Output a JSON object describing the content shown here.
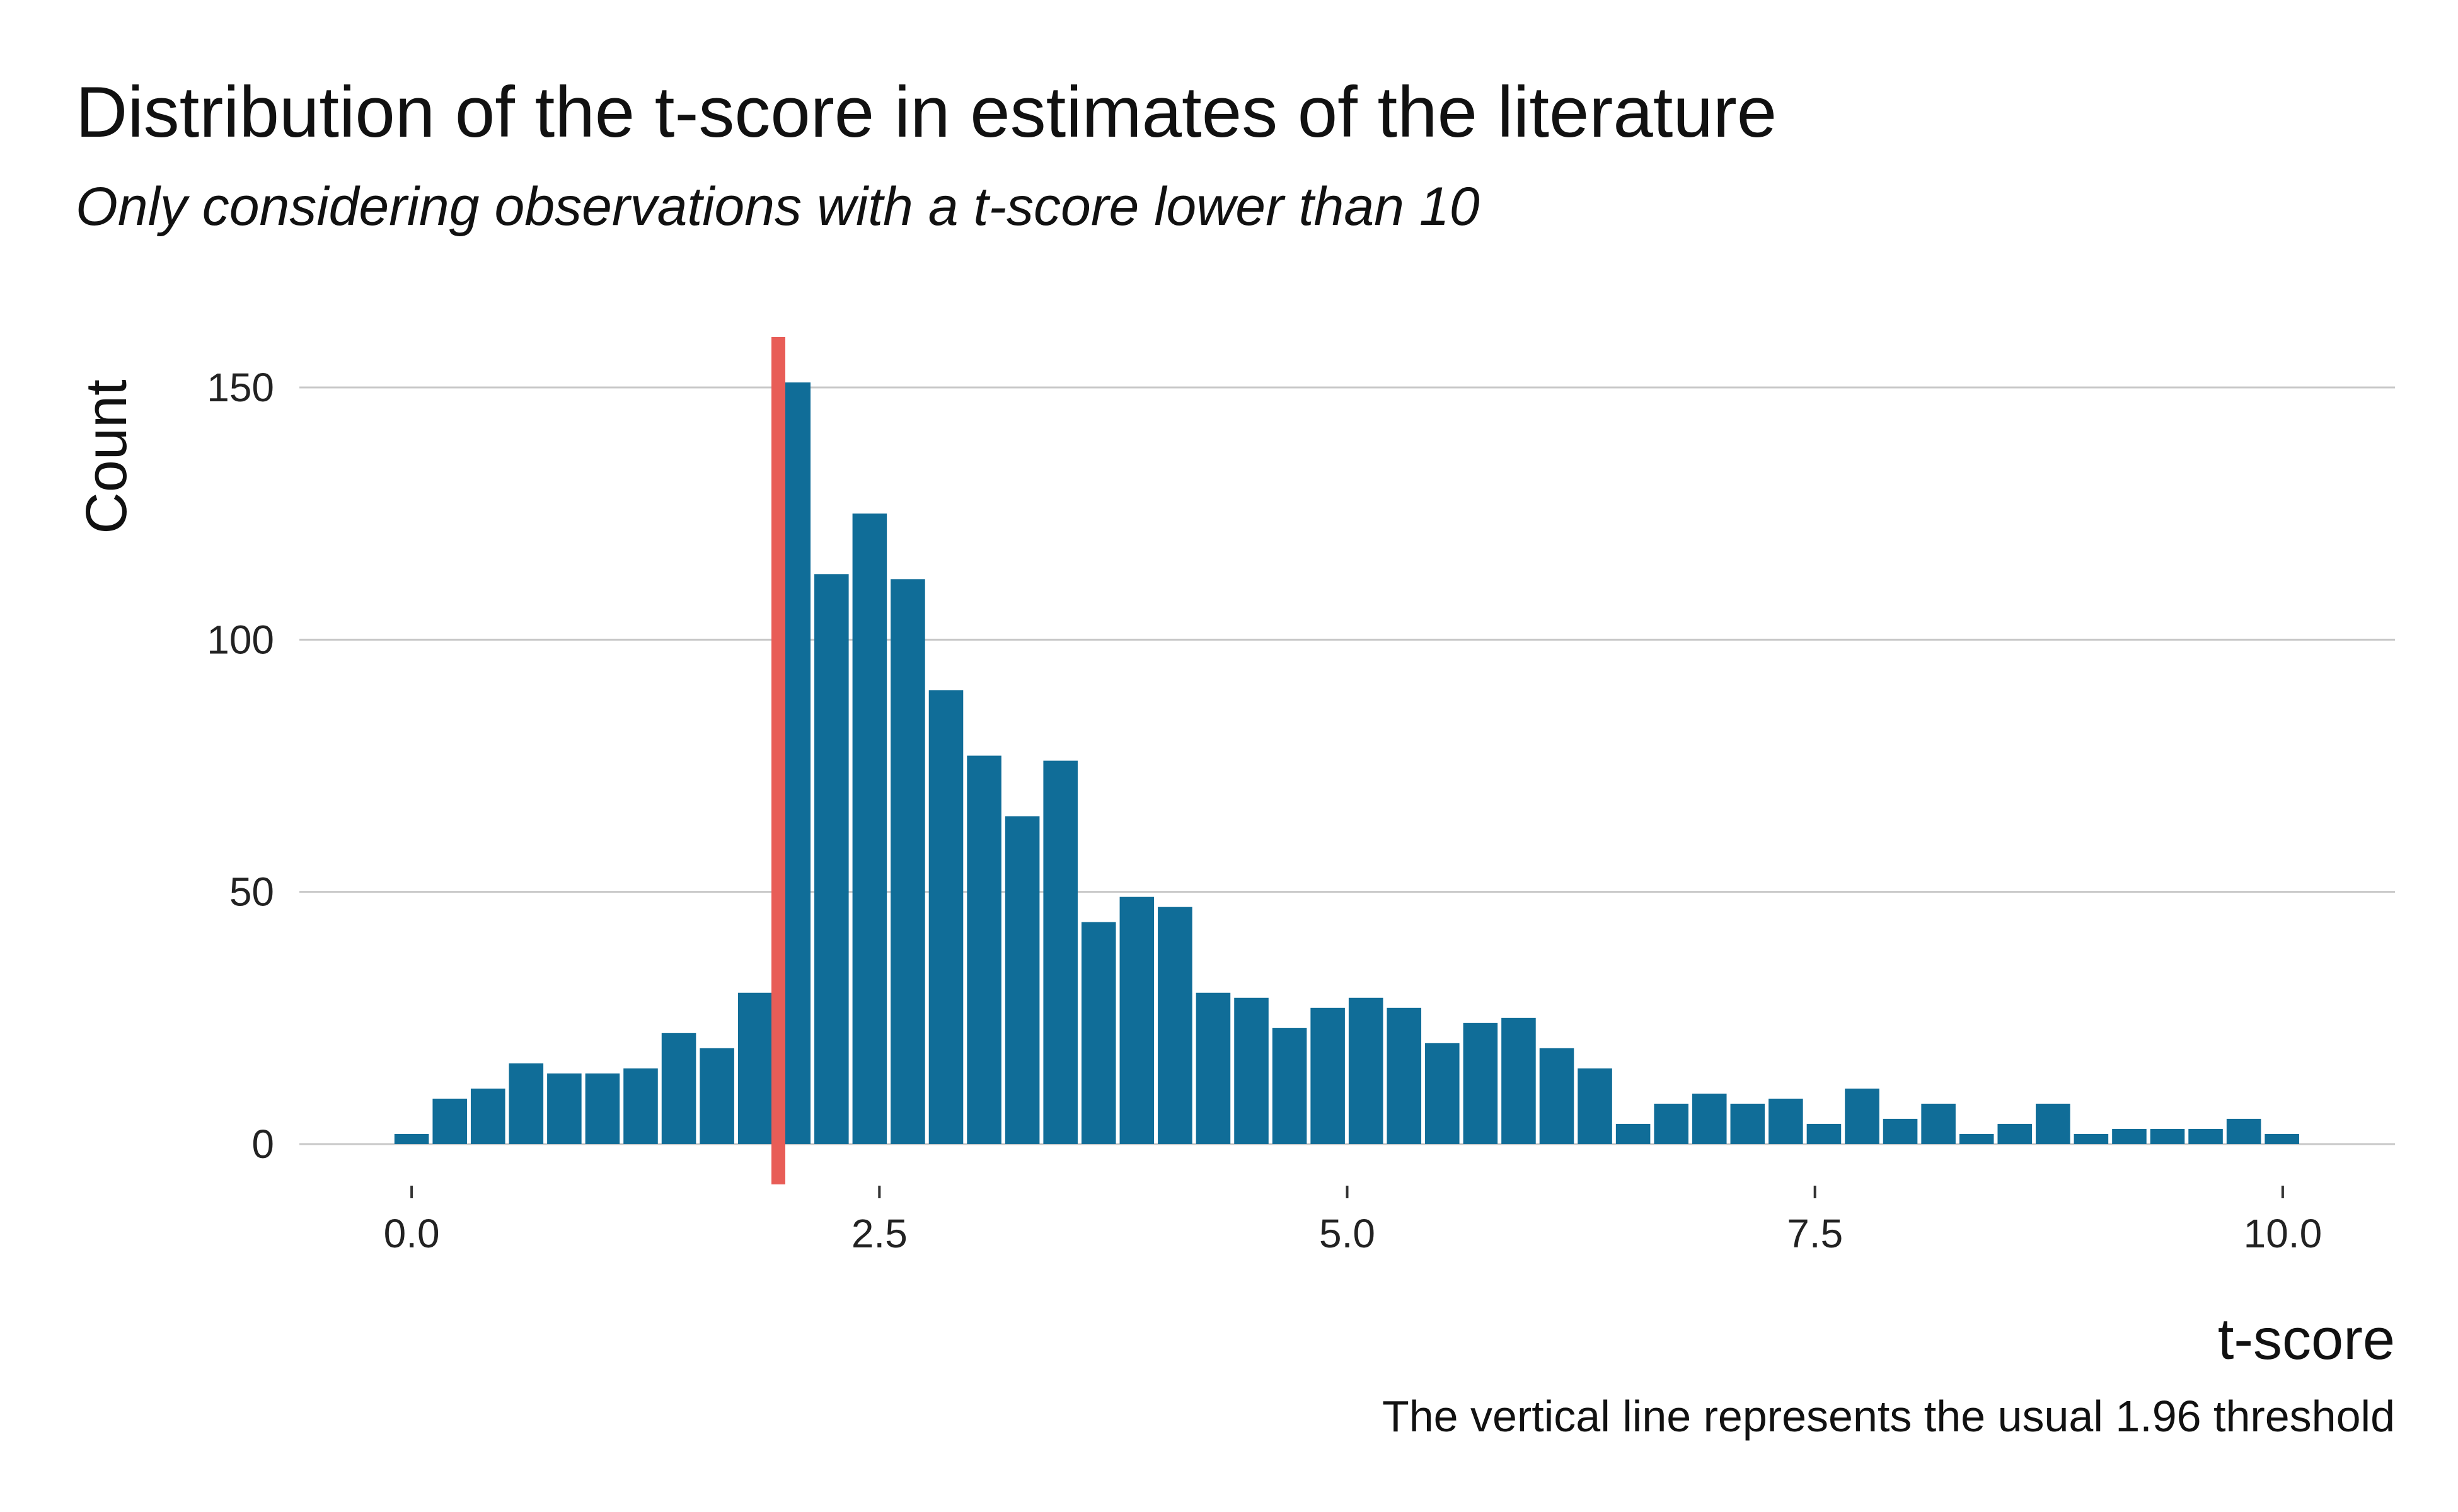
{
  "chart_data": {
    "type": "bar",
    "title": "Distribution of the t-score in estimates of the literature",
    "subtitle": "Only considering observations with a t-score lower than 10",
    "xlabel": "t-score",
    "ylabel": "Count",
    "caption": "The vertical line represents the usual 1.96 threshold",
    "x_ticks": [
      "0.0",
      "2.5",
      "5.0",
      "7.5",
      "10.0"
    ],
    "x_tick_values": [
      0,
      2.5,
      5,
      7.5,
      10
    ],
    "y_ticks": [
      "0",
      "50",
      "100",
      "150"
    ],
    "y_tick_values": [
      0,
      50,
      100,
      150
    ],
    "xlim": [
      -0.6,
      10.6
    ],
    "ylim": [
      -8,
      160
    ],
    "grid": "horizontal",
    "bin_width": 0.204,
    "bin_centers": [
      0.0,
      0.204,
      0.408,
      0.612,
      0.816,
      1.02,
      1.224,
      1.428,
      1.632,
      1.836,
      2.04,
      2.244,
      2.448,
      2.652,
      2.856,
      3.06,
      3.264,
      3.468,
      3.672,
      3.876,
      4.08,
      4.284,
      4.488,
      4.692,
      4.896,
      5.1,
      5.304,
      5.508,
      5.712,
      5.916,
      6.12,
      6.324,
      6.528,
      6.732,
      6.936,
      7.14,
      7.344,
      7.548,
      7.752,
      7.956,
      8.16,
      8.364,
      8.568,
      8.772,
      8.976,
      9.18,
      9.384,
      9.588,
      9.792,
      9.996
    ],
    "values": [
      2,
      9,
      11,
      16,
      14,
      14,
      15,
      22,
      19,
      30,
      151,
      113,
      125,
      112,
      90,
      77,
      65,
      76,
      44,
      49,
      47,
      30,
      29,
      23,
      27,
      29,
      27,
      20,
      24,
      25,
      19,
      15,
      4,
      8,
      10,
      8,
      9,
      4,
      11,
      5,
      8,
      2,
      4,
      8,
      2,
      3,
      3,
      3,
      5,
      2
    ],
    "vline": {
      "x": 1.96,
      "color": "#e85d57"
    },
    "bar_color": "#106d98",
    "grid_color": "#c8c8c8"
  }
}
